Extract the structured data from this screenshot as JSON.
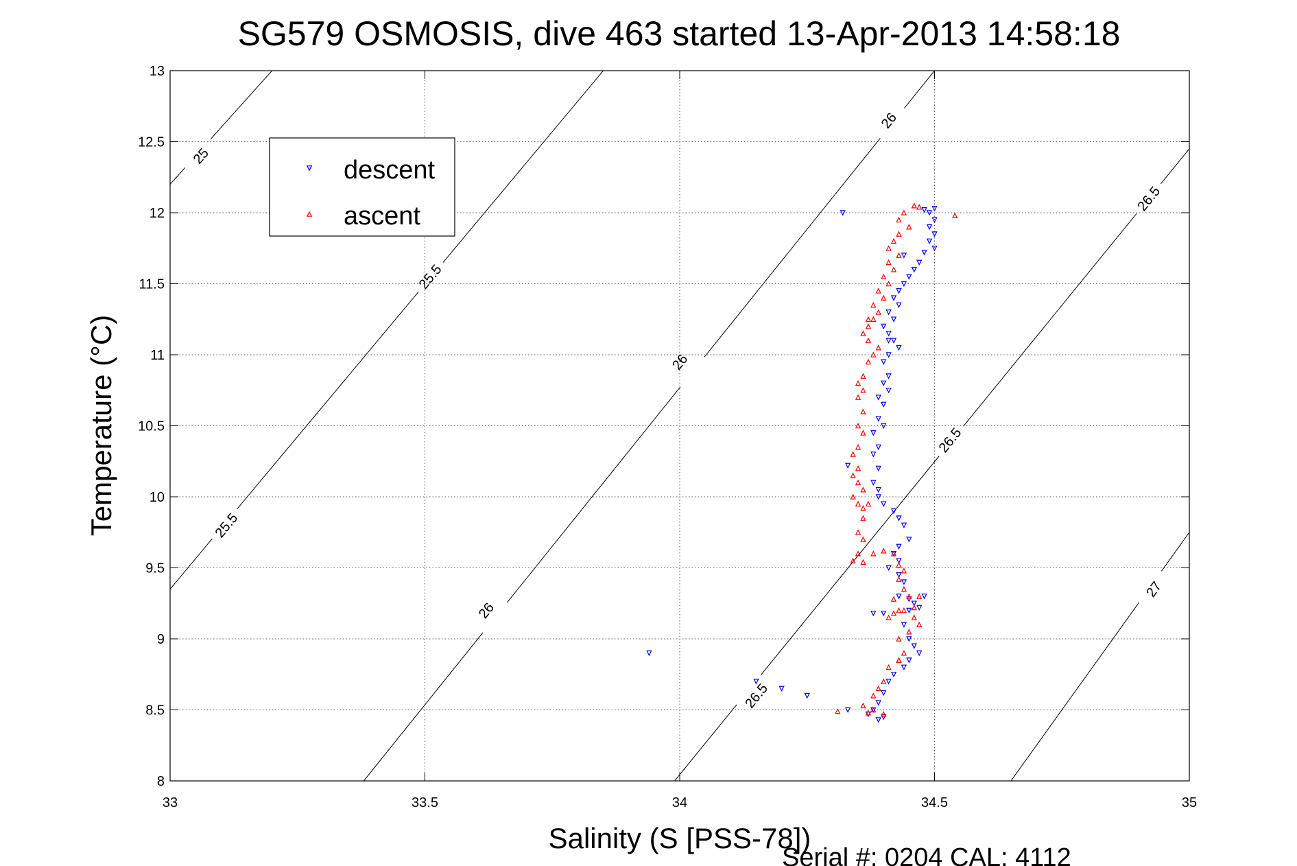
{
  "chart_data": {
    "type": "scatter",
    "title": "SG579 OSMOSIS, dive 463 started 13-Apr-2013 14:58:18",
    "xlabel": "Salinity (S [PSS-78])",
    "ylabel": "Temperature (°C)",
    "xlim": [
      33,
      35
    ],
    "ylim": [
      8,
      13
    ],
    "xticks": [
      "33",
      "33.5",
      "34",
      "34.5",
      "35"
    ],
    "yticks": [
      "8",
      "8.5",
      "9",
      "9.5",
      "10",
      "10.5",
      "11",
      "11.5",
      "12",
      "12.5",
      "13"
    ],
    "grid": true,
    "legend": {
      "placement": "top-left",
      "entries": [
        "descent",
        "ascent"
      ]
    },
    "footer": "Serial #: 0204  CAL: 4112",
    "colors": {
      "descent": "#0000ff",
      "ascent": "#ff0000",
      "contour": "#000000"
    },
    "density_contours": [
      {
        "label": "25",
        "points": [
          [
            33.0,
            12.2
          ],
          [
            33.2,
            13.0
          ]
        ],
        "label_at": [
          33.06,
          12.4
        ]
      },
      {
        "label": "25.5",
        "points": [
          [
            33.0,
            9.35
          ],
          [
            33.85,
            13.0
          ]
        ],
        "labels_at": [
          [
            33.11,
            9.8
          ],
          [
            33.51,
            11.55
          ]
        ]
      },
      {
        "label": "26",
        "points": [
          [
            33.38,
            8.0
          ],
          [
            34.5,
            13.0
          ]
        ],
        "labels_at": [
          [
            33.62,
            9.2
          ],
          [
            34.0,
            10.95
          ],
          [
            34.41,
            12.65
          ]
        ]
      },
      {
        "label": "26.5",
        "points": [
          [
            33.99,
            8.0
          ],
          [
            35.0,
            12.45
          ]
        ],
        "labels_at": [
          [
            34.15,
            8.6
          ],
          [
            34.53,
            10.4
          ],
          [
            34.92,
            12.1
          ]
        ]
      },
      {
        "label": "27",
        "points": [
          [
            34.65,
            8.0
          ],
          [
            35.0,
            9.75
          ]
        ],
        "labels_at": [
          [
            34.93,
            9.35
          ]
        ]
      }
    ],
    "series": [
      {
        "name": "descent",
        "marker": "triangle-down",
        "points": [
          [
            34.5,
            12.03
          ],
          [
            34.49,
            12.0
          ],
          [
            34.5,
            11.95
          ],
          [
            34.49,
            11.9
          ],
          [
            34.5,
            11.85
          ],
          [
            34.49,
            11.8
          ],
          [
            34.5,
            11.75
          ],
          [
            34.48,
            11.72
          ],
          [
            34.47,
            11.65
          ],
          [
            34.46,
            11.6
          ],
          [
            34.45,
            11.55
          ],
          [
            34.44,
            11.5
          ],
          [
            34.43,
            11.45
          ],
          [
            34.42,
            11.4
          ],
          [
            34.43,
            11.35
          ],
          [
            34.41,
            11.3
          ],
          [
            34.42,
            11.25
          ],
          [
            34.4,
            11.2
          ],
          [
            34.41,
            11.15
          ],
          [
            34.42,
            11.1
          ],
          [
            34.43,
            11.05
          ],
          [
            34.41,
            11.0
          ],
          [
            34.4,
            10.95
          ],
          [
            34.41,
            10.85
          ],
          [
            34.4,
            10.8
          ],
          [
            34.41,
            10.75
          ],
          [
            34.39,
            10.7
          ],
          [
            34.4,
            10.65
          ],
          [
            34.39,
            10.55
          ],
          [
            34.4,
            10.5
          ],
          [
            34.38,
            10.45
          ],
          [
            34.39,
            10.35
          ],
          [
            34.38,
            10.3
          ],
          [
            34.39,
            10.2
          ],
          [
            34.38,
            10.1
          ],
          [
            34.39,
            10.05
          ],
          [
            34.4,
            9.95
          ],
          [
            34.42,
            9.9
          ],
          [
            34.43,
            9.85
          ],
          [
            34.44,
            9.8
          ],
          [
            34.45,
            9.7
          ],
          [
            34.43,
            9.65
          ],
          [
            34.42,
            9.6
          ],
          [
            34.43,
            9.55
          ],
          [
            34.41,
            9.5
          ],
          [
            34.43,
            9.45
          ],
          [
            34.44,
            9.4
          ],
          [
            34.43,
            9.3
          ],
          [
            34.45,
            9.28
          ],
          [
            34.46,
            9.25
          ],
          [
            34.47,
            9.22
          ],
          [
            34.48,
            9.3
          ],
          [
            34.45,
            9.2
          ],
          [
            34.4,
            9.18
          ],
          [
            34.38,
            9.18
          ],
          [
            34.44,
            9.1
          ],
          [
            34.45,
            9.0
          ],
          [
            34.46,
            8.95
          ],
          [
            34.47,
            8.9
          ],
          [
            34.45,
            8.85
          ],
          [
            34.44,
            8.8
          ],
          [
            34.42,
            8.75
          ],
          [
            34.41,
            8.7
          ],
          [
            34.4,
            8.62
          ],
          [
            34.39,
            8.55
          ],
          [
            34.38,
            8.5
          ],
          [
            34.4,
            8.45
          ],
          [
            34.39,
            8.43
          ],
          [
            34.37,
            8.47
          ],
          [
            34.25,
            8.6
          ],
          [
            34.2,
            8.65
          ],
          [
            34.15,
            8.7
          ],
          [
            34.33,
            8.5
          ],
          [
            34.33,
            10.22
          ],
          [
            34.32,
            12.0
          ],
          [
            33.94,
            8.9
          ],
          [
            34.39,
            10.0
          ],
          [
            34.41,
            11.1
          ],
          [
            34.44,
            11.7
          ],
          [
            34.48,
            12.02
          ]
        ]
      },
      {
        "name": "ascent",
        "marker": "triangle-up",
        "points": [
          [
            34.46,
            12.05
          ],
          [
            34.44,
            12.0
          ],
          [
            34.43,
            11.95
          ],
          [
            34.45,
            11.9
          ],
          [
            34.43,
            11.85
          ],
          [
            34.42,
            11.8
          ],
          [
            34.41,
            11.75
          ],
          [
            34.43,
            11.7
          ],
          [
            34.41,
            11.65
          ],
          [
            34.42,
            11.6
          ],
          [
            34.4,
            11.55
          ],
          [
            34.41,
            11.5
          ],
          [
            34.39,
            11.45
          ],
          [
            34.4,
            11.4
          ],
          [
            34.38,
            11.35
          ],
          [
            34.39,
            11.3
          ],
          [
            34.38,
            11.25
          ],
          [
            34.37,
            11.2
          ],
          [
            34.36,
            11.15
          ],
          [
            34.37,
            11.1
          ],
          [
            34.39,
            11.05
          ],
          [
            34.38,
            11.0
          ],
          [
            34.37,
            10.95
          ],
          [
            34.36,
            10.85
          ],
          [
            34.35,
            10.8
          ],
          [
            34.36,
            10.75
          ],
          [
            34.35,
            10.7
          ],
          [
            34.36,
            10.6
          ],
          [
            34.35,
            10.5
          ],
          [
            34.36,
            10.45
          ],
          [
            34.35,
            10.35
          ],
          [
            34.34,
            10.3
          ],
          [
            34.35,
            10.2
          ],
          [
            34.34,
            10.15
          ],
          [
            34.35,
            10.1
          ],
          [
            34.34,
            10.0
          ],
          [
            34.35,
            9.95
          ],
          [
            34.36,
            9.92
          ],
          [
            34.37,
            9.95
          ],
          [
            34.36,
            9.85
          ],
          [
            34.35,
            9.75
          ],
          [
            34.36,
            9.7
          ],
          [
            34.35,
            9.6
          ],
          [
            34.34,
            9.55
          ],
          [
            34.36,
            9.54
          ],
          [
            34.38,
            9.6
          ],
          [
            34.4,
            9.62
          ],
          [
            34.42,
            9.6
          ],
          [
            34.43,
            9.52
          ],
          [
            34.44,
            9.48
          ],
          [
            34.43,
            9.42
          ],
          [
            34.44,
            9.35
          ],
          [
            34.45,
            9.3
          ],
          [
            34.47,
            9.3
          ],
          [
            34.46,
            9.22
          ],
          [
            34.44,
            9.2
          ],
          [
            34.42,
            9.18
          ],
          [
            34.41,
            9.15
          ],
          [
            34.43,
            9.2
          ],
          [
            34.46,
            9.15
          ],
          [
            34.47,
            9.1
          ],
          [
            34.45,
            9.05
          ],
          [
            34.43,
            9.0
          ],
          [
            34.44,
            8.9
          ],
          [
            34.43,
            8.85
          ],
          [
            34.41,
            8.8
          ],
          [
            34.4,
            8.7
          ],
          [
            34.39,
            8.65
          ],
          [
            34.38,
            8.6
          ],
          [
            34.36,
            8.53
          ],
          [
            34.38,
            8.5
          ],
          [
            34.4,
            8.47
          ],
          [
            34.37,
            8.48
          ],
          [
            34.31,
            8.49
          ],
          [
            34.54,
            11.98
          ],
          [
            34.47,
            12.04
          ],
          [
            34.37,
            11.25
          ],
          [
            34.36,
            10.05
          ],
          [
            34.42,
            9.28
          ],
          [
            34.43,
            8.85
          ]
        ]
      }
    ]
  }
}
